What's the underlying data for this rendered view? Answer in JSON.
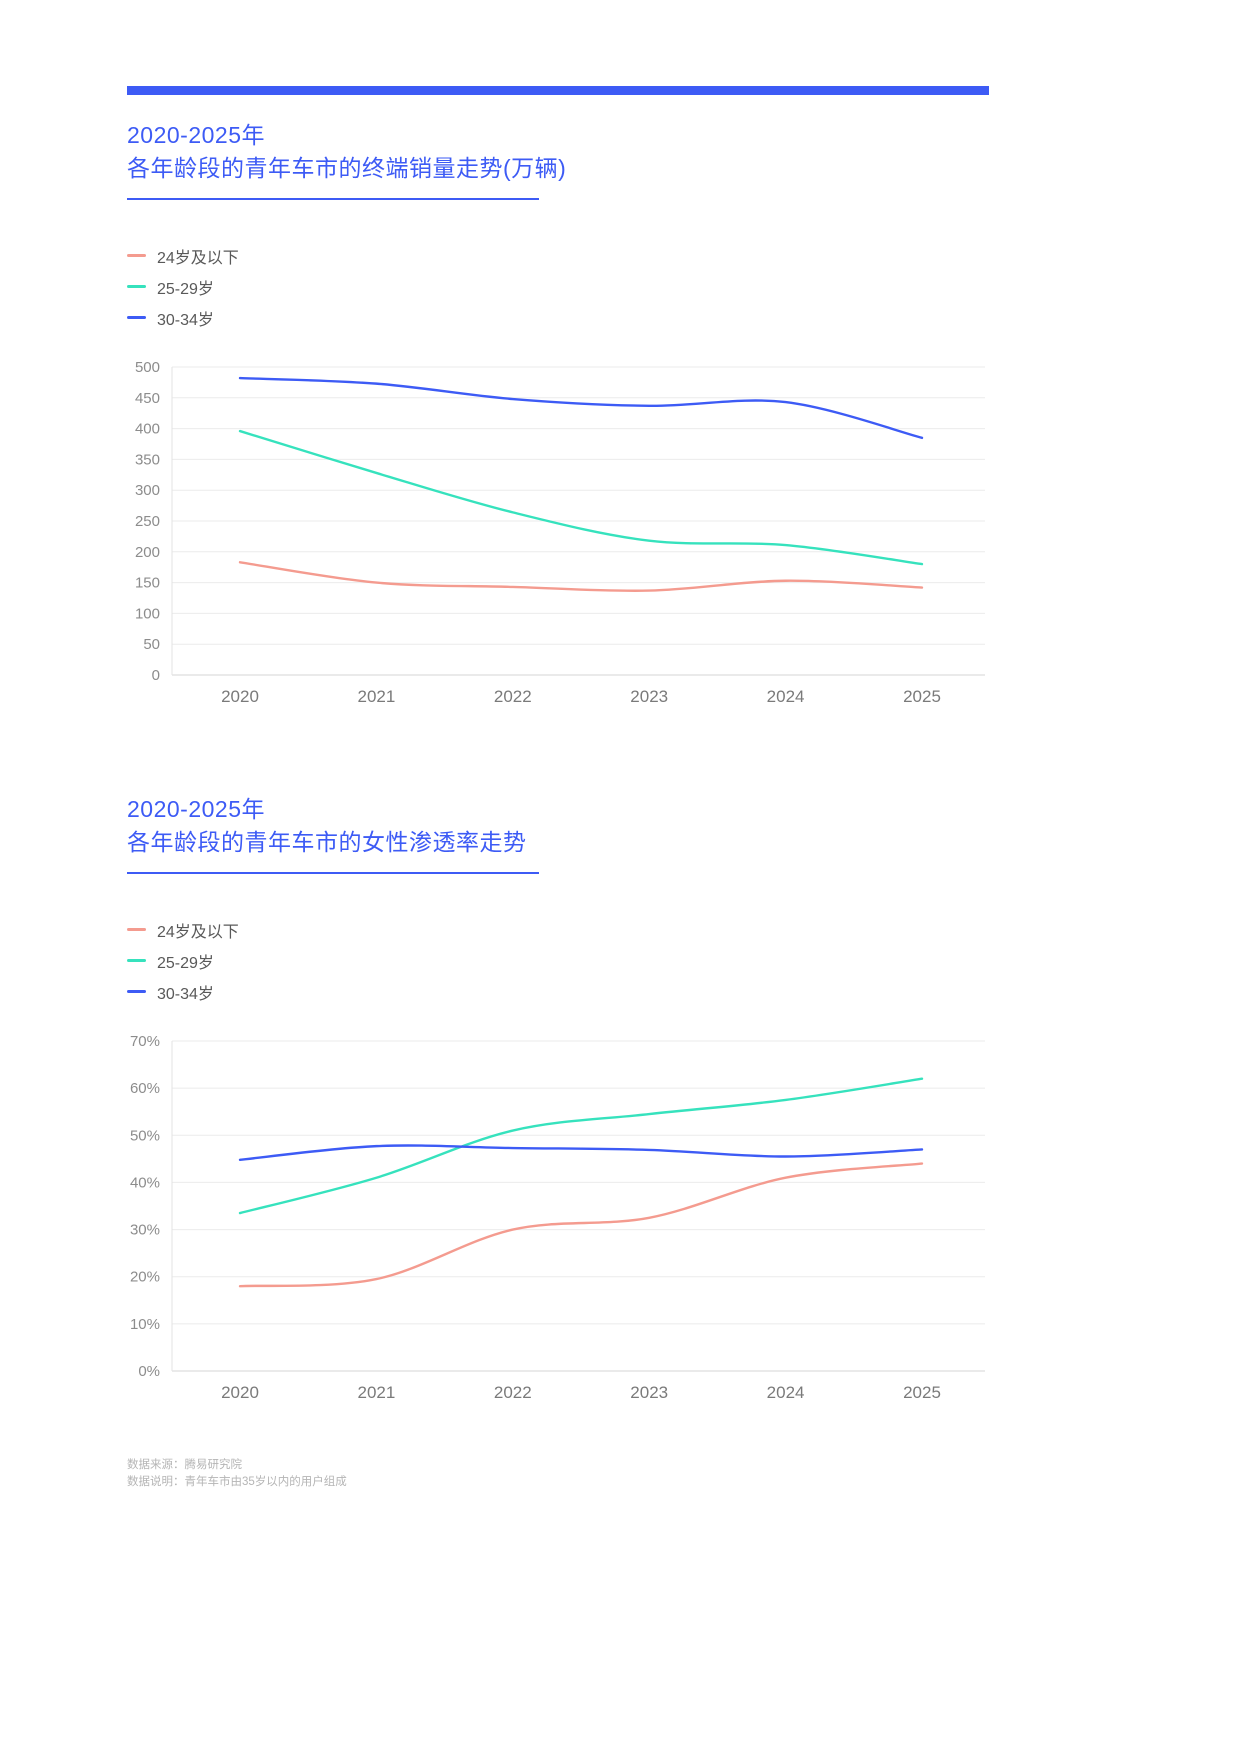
{
  "accent": "#3d5bf5",
  "chart_data": [
    {
      "type": "line",
      "title": "2020-2025年",
      "subtitle": "各年龄段的青年车市的终端销量走势(万辆)",
      "x": [
        "2020",
        "2021",
        "2022",
        "2023",
        "2024",
        "2025"
      ],
      "series": [
        {
          "name": "24岁及以下",
          "color": "#f49b8f",
          "values": [
            183,
            150,
            143,
            137,
            153,
            142
          ]
        },
        {
          "name": "25-29岁",
          "color": "#36e2bd",
          "values": [
            396,
            328,
            264,
            218,
            211,
            180
          ]
        },
        {
          "name": "30-34岁",
          "color": "#3d5bf5",
          "values": [
            482,
            473,
            448,
            437,
            443,
            385
          ]
        }
      ],
      "ylim": [
        0,
        500
      ],
      "ytick_step": 50,
      "y_format": "number",
      "grid": true,
      "legend_position": "top-left"
    },
    {
      "type": "line",
      "title": "2020-2025年",
      "subtitle": "各年龄段的青年车市的女性渗透率走势",
      "x": [
        "2020",
        "2021",
        "2022",
        "2023",
        "2024",
        "2025"
      ],
      "series": [
        {
          "name": "24岁及以下",
          "color": "#f49b8f",
          "values": [
            18,
            19.5,
            30,
            32.5,
            41,
            44
          ]
        },
        {
          "name": "25-29岁",
          "color": "#36e2bd",
          "values": [
            33.5,
            41,
            51,
            54.5,
            57.5,
            62
          ]
        },
        {
          "name": "30-34岁",
          "color": "#3d5bf5",
          "values": [
            44.8,
            47.7,
            47.3,
            46.9,
            45.5,
            47
          ]
        }
      ],
      "ylim": [
        0,
        70
      ],
      "ytick_step": 10,
      "y_format": "percent",
      "grid": true,
      "legend_position": "top-left"
    }
  ],
  "footer": {
    "source": "数据来源：腾易研究院",
    "note": "数据说明：青年车市由35岁以内的用户组成"
  }
}
